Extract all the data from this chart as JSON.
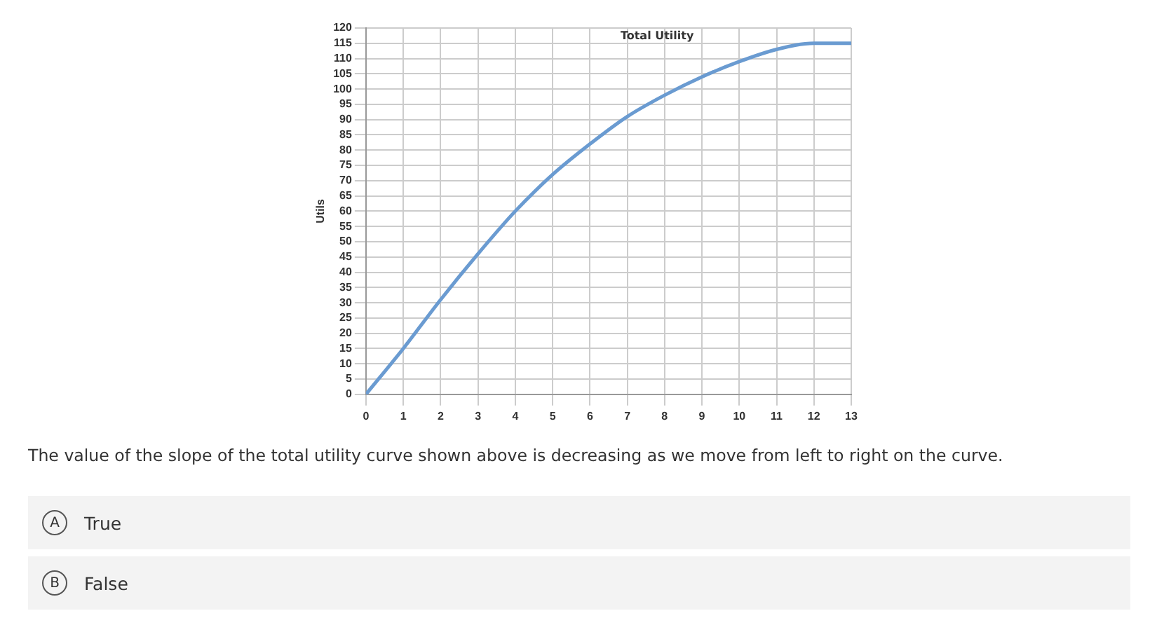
{
  "chart_data": {
    "type": "line",
    "title": "Total Utility",
    "ylabel": "Utils",
    "x": [
      0,
      1,
      2,
      3,
      4,
      5,
      6,
      7,
      8,
      9,
      10,
      11,
      12,
      13
    ],
    "series": [
      {
        "color": "#6a9bd1",
        "values": [
          0,
          15,
          31,
          46,
          60,
          72,
          82,
          91,
          98,
          104,
          109,
          113,
          115,
          115
        ]
      }
    ],
    "xlim": [
      0,
      13
    ],
    "xticks": [
      0,
      1,
      2,
      3,
      4,
      5,
      6,
      7,
      8,
      9,
      10,
      11,
      12,
      13
    ],
    "ylim": [
      0,
      120
    ],
    "yticks": [
      0,
      5,
      10,
      15,
      20,
      25,
      30,
      35,
      40,
      45,
      50,
      55,
      60,
      65,
      70,
      75,
      80,
      85,
      90,
      95,
      100,
      105,
      110,
      115,
      120
    ],
    "grid": true,
    "legend": false,
    "marker": "none",
    "line_style": "solid",
    "annotations": [
      "The value of the slope of the total utility curve shown above is decreasing as we move from left to right on the curve.",
      "A",
      "True",
      "B",
      "False"
    ]
  }
}
